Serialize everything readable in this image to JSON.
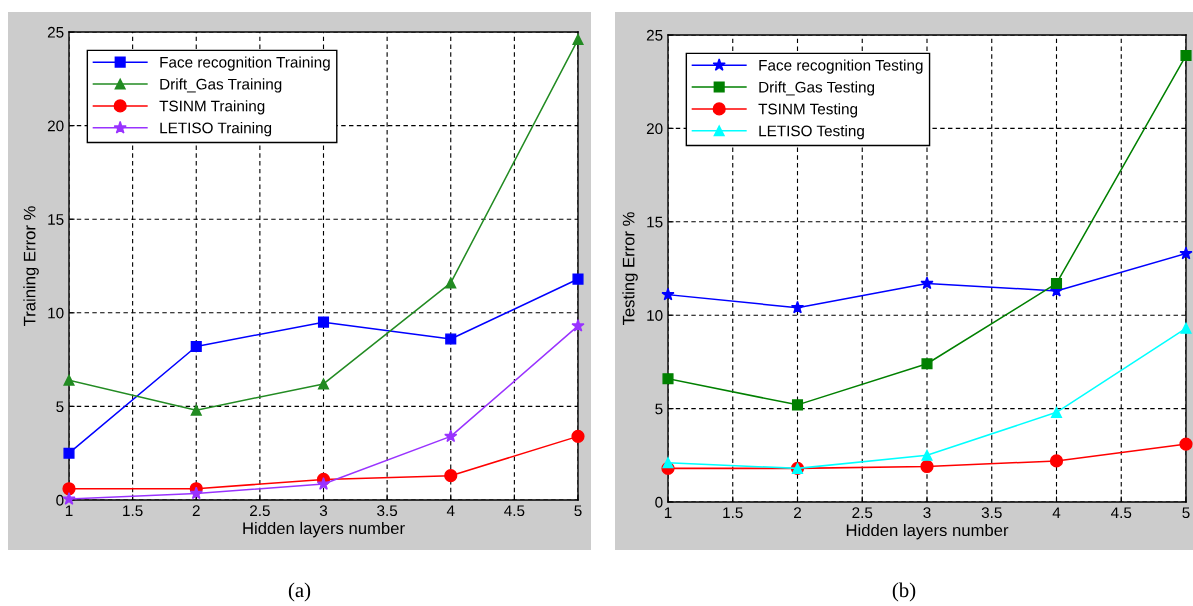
{
  "chart_data": [
    {
      "type": "line",
      "xlabel": "Hidden layers number",
      "ylabel": "Training Error %",
      "x": [
        1,
        2,
        3,
        4,
        5
      ],
      "xlim": [
        1,
        5
      ],
      "xticks": [
        1,
        1.5,
        2,
        2.5,
        3,
        3.5,
        4,
        4.5,
        5
      ],
      "ylim": [
        0,
        25
      ],
      "yticks": [
        0,
        5,
        10,
        15,
        20,
        25
      ],
      "grid": true,
      "legend": "top left",
      "line_style": "solid",
      "annotations": [
        "(a)"
      ],
      "series": [
        {
          "name": "Face recognition Training",
          "color": "#0000ff",
          "marker": "square",
          "values": [
            2.5,
            8.2,
            9.5,
            8.6,
            11.8
          ]
        },
        {
          "name": "Drift_Gas Training",
          "color": "#228b22",
          "marker": "triangle",
          "values": [
            6.4,
            4.8,
            6.2,
            11.6,
            24.6
          ]
        },
        {
          "name": "TSINM Training",
          "color": "#ff0000",
          "marker": "circle",
          "values": [
            0.6,
            0.6,
            1.1,
            1.3,
            3.4
          ]
        },
        {
          "name": "LETISO Training",
          "color": "#9933ff",
          "marker": "star",
          "values": [
            0.05,
            0.35,
            0.85,
            3.4,
            9.3
          ]
        }
      ]
    },
    {
      "type": "line",
      "xlabel": "Hidden layers number",
      "ylabel": "Testing Error %",
      "x": [
        1,
        2,
        3,
        4,
        5
      ],
      "xlim": [
        1,
        5
      ],
      "xticks": [
        1,
        1.5,
        2,
        2.5,
        3,
        3.5,
        4,
        4.5,
        5
      ],
      "ylim": [
        0,
        25
      ],
      "yticks": [
        0,
        5,
        10,
        15,
        20,
        25
      ],
      "grid": true,
      "legend": "top left",
      "line_style": "solid",
      "annotations": [
        "(b)"
      ],
      "series": [
        {
          "name": "Face recognition Testing",
          "color": "#0000ff",
          "marker": "star",
          "values": [
            11.1,
            10.4,
            11.7,
            11.3,
            13.3
          ]
        },
        {
          "name": "Drift_Gas Testing",
          "color": "#008000",
          "marker": "square",
          "values": [
            6.6,
            5.2,
            7.4,
            11.7,
            23.9
          ]
        },
        {
          "name": "TSINM Testing",
          "color": "#ff0000",
          "marker": "circle",
          "values": [
            1.8,
            1.8,
            1.9,
            2.2,
            3.1
          ]
        },
        {
          "name": "LETISO Testing",
          "color": "#00ffff",
          "marker": "triangle",
          "values": [
            2.1,
            1.8,
            2.5,
            4.8,
            9.3
          ]
        }
      ]
    }
  ]
}
